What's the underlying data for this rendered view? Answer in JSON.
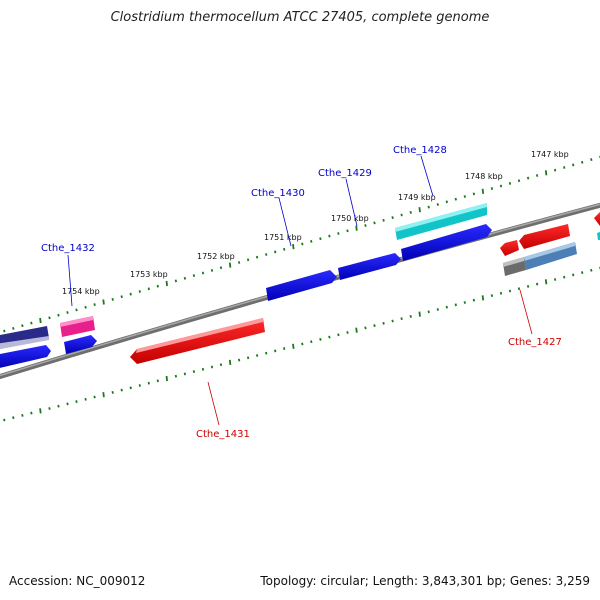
{
  "title": "Clostridium thermocellum ATCC 27405, complete genome",
  "footer": {
    "accession": "Accession: NC_009012",
    "stats": "Topology: circular; Length: 3,843,301 bp; Genes: 3,259"
  },
  "kbp_labels": [
    "1747 kbp",
    "1748 kbp",
    "1749 kbp",
    "1750 kbp",
    "1751 kbp",
    "1752 kbp",
    "1753 kbp",
    "1754 kbp"
  ],
  "gene_labels": [
    {
      "name": "Cthe_1428",
      "strand": "forward"
    },
    {
      "name": "Cthe_1429",
      "strand": "forward"
    },
    {
      "name": "Cthe_1430",
      "strand": "forward"
    },
    {
      "name": "Cthe_1432",
      "strand": "forward"
    },
    {
      "name": "Cthe_1427",
      "strand": "reverse"
    },
    {
      "name": "Cthe_1431",
      "strand": "reverse"
    }
  ],
  "colors": {
    "forward_label": "#0000cc",
    "reverse_label": "#cc0000",
    "backbone": "#808080",
    "ticks": "#1a7a1a",
    "gene_blue": "#0a0ae6",
    "gene_red": "#ee0a0a",
    "gene_cyan": "#12c4c8",
    "gene_magenta": "#e8208c",
    "gene_navy": "#2a2a8a",
    "gene_steel": "#4b7fb5",
    "gene_grey": "#6b6b6b"
  }
}
